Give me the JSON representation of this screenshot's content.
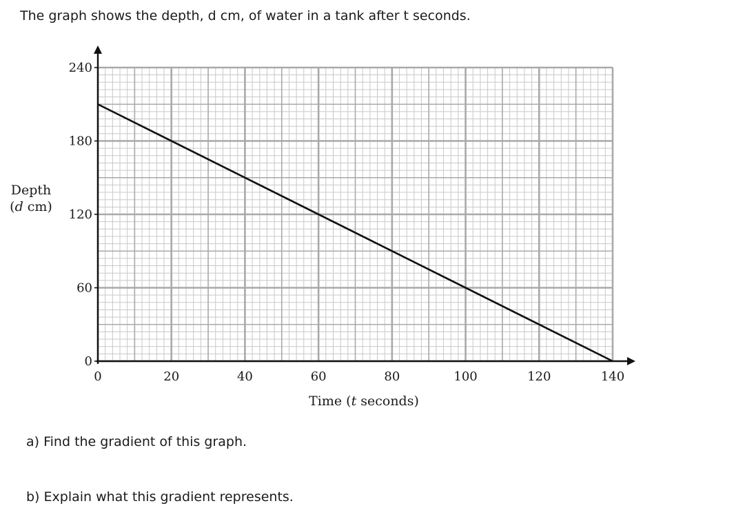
{
  "question": {
    "intro": "The graph shows the depth, d cm, of water in a tank after t seconds.",
    "part_a": "a) Find the gradient of this graph.",
    "part_b": "b) Explain what this gradient represents."
  },
  "axis_labels": {
    "y_line1": "Depth",
    "y_open": "(",
    "y_var": "d",
    "y_unit": " cm)",
    "x_prefix": "Time (",
    "x_var": "t",
    "x_suffix": " seconds)"
  },
  "chart_data": {
    "type": "line",
    "x_ticks": [
      0,
      20,
      40,
      60,
      80,
      100,
      120,
      140
    ],
    "y_ticks": [
      0,
      60,
      120,
      180,
      240
    ],
    "xlim": [
      0,
      140
    ],
    "ylim": [
      0,
      240
    ],
    "series": [
      {
        "x": [
          0,
          140
        ],
        "y": [
          210,
          0
        ]
      }
    ],
    "grid": "graph paper (major lines every 20 units on x and 60 units on y, minor lines between)",
    "colors": {
      "line": "#111111",
      "grid_major": "#a9a9a9",
      "grid_minor": "#c8c8c8",
      "axes": "#111111"
    }
  }
}
